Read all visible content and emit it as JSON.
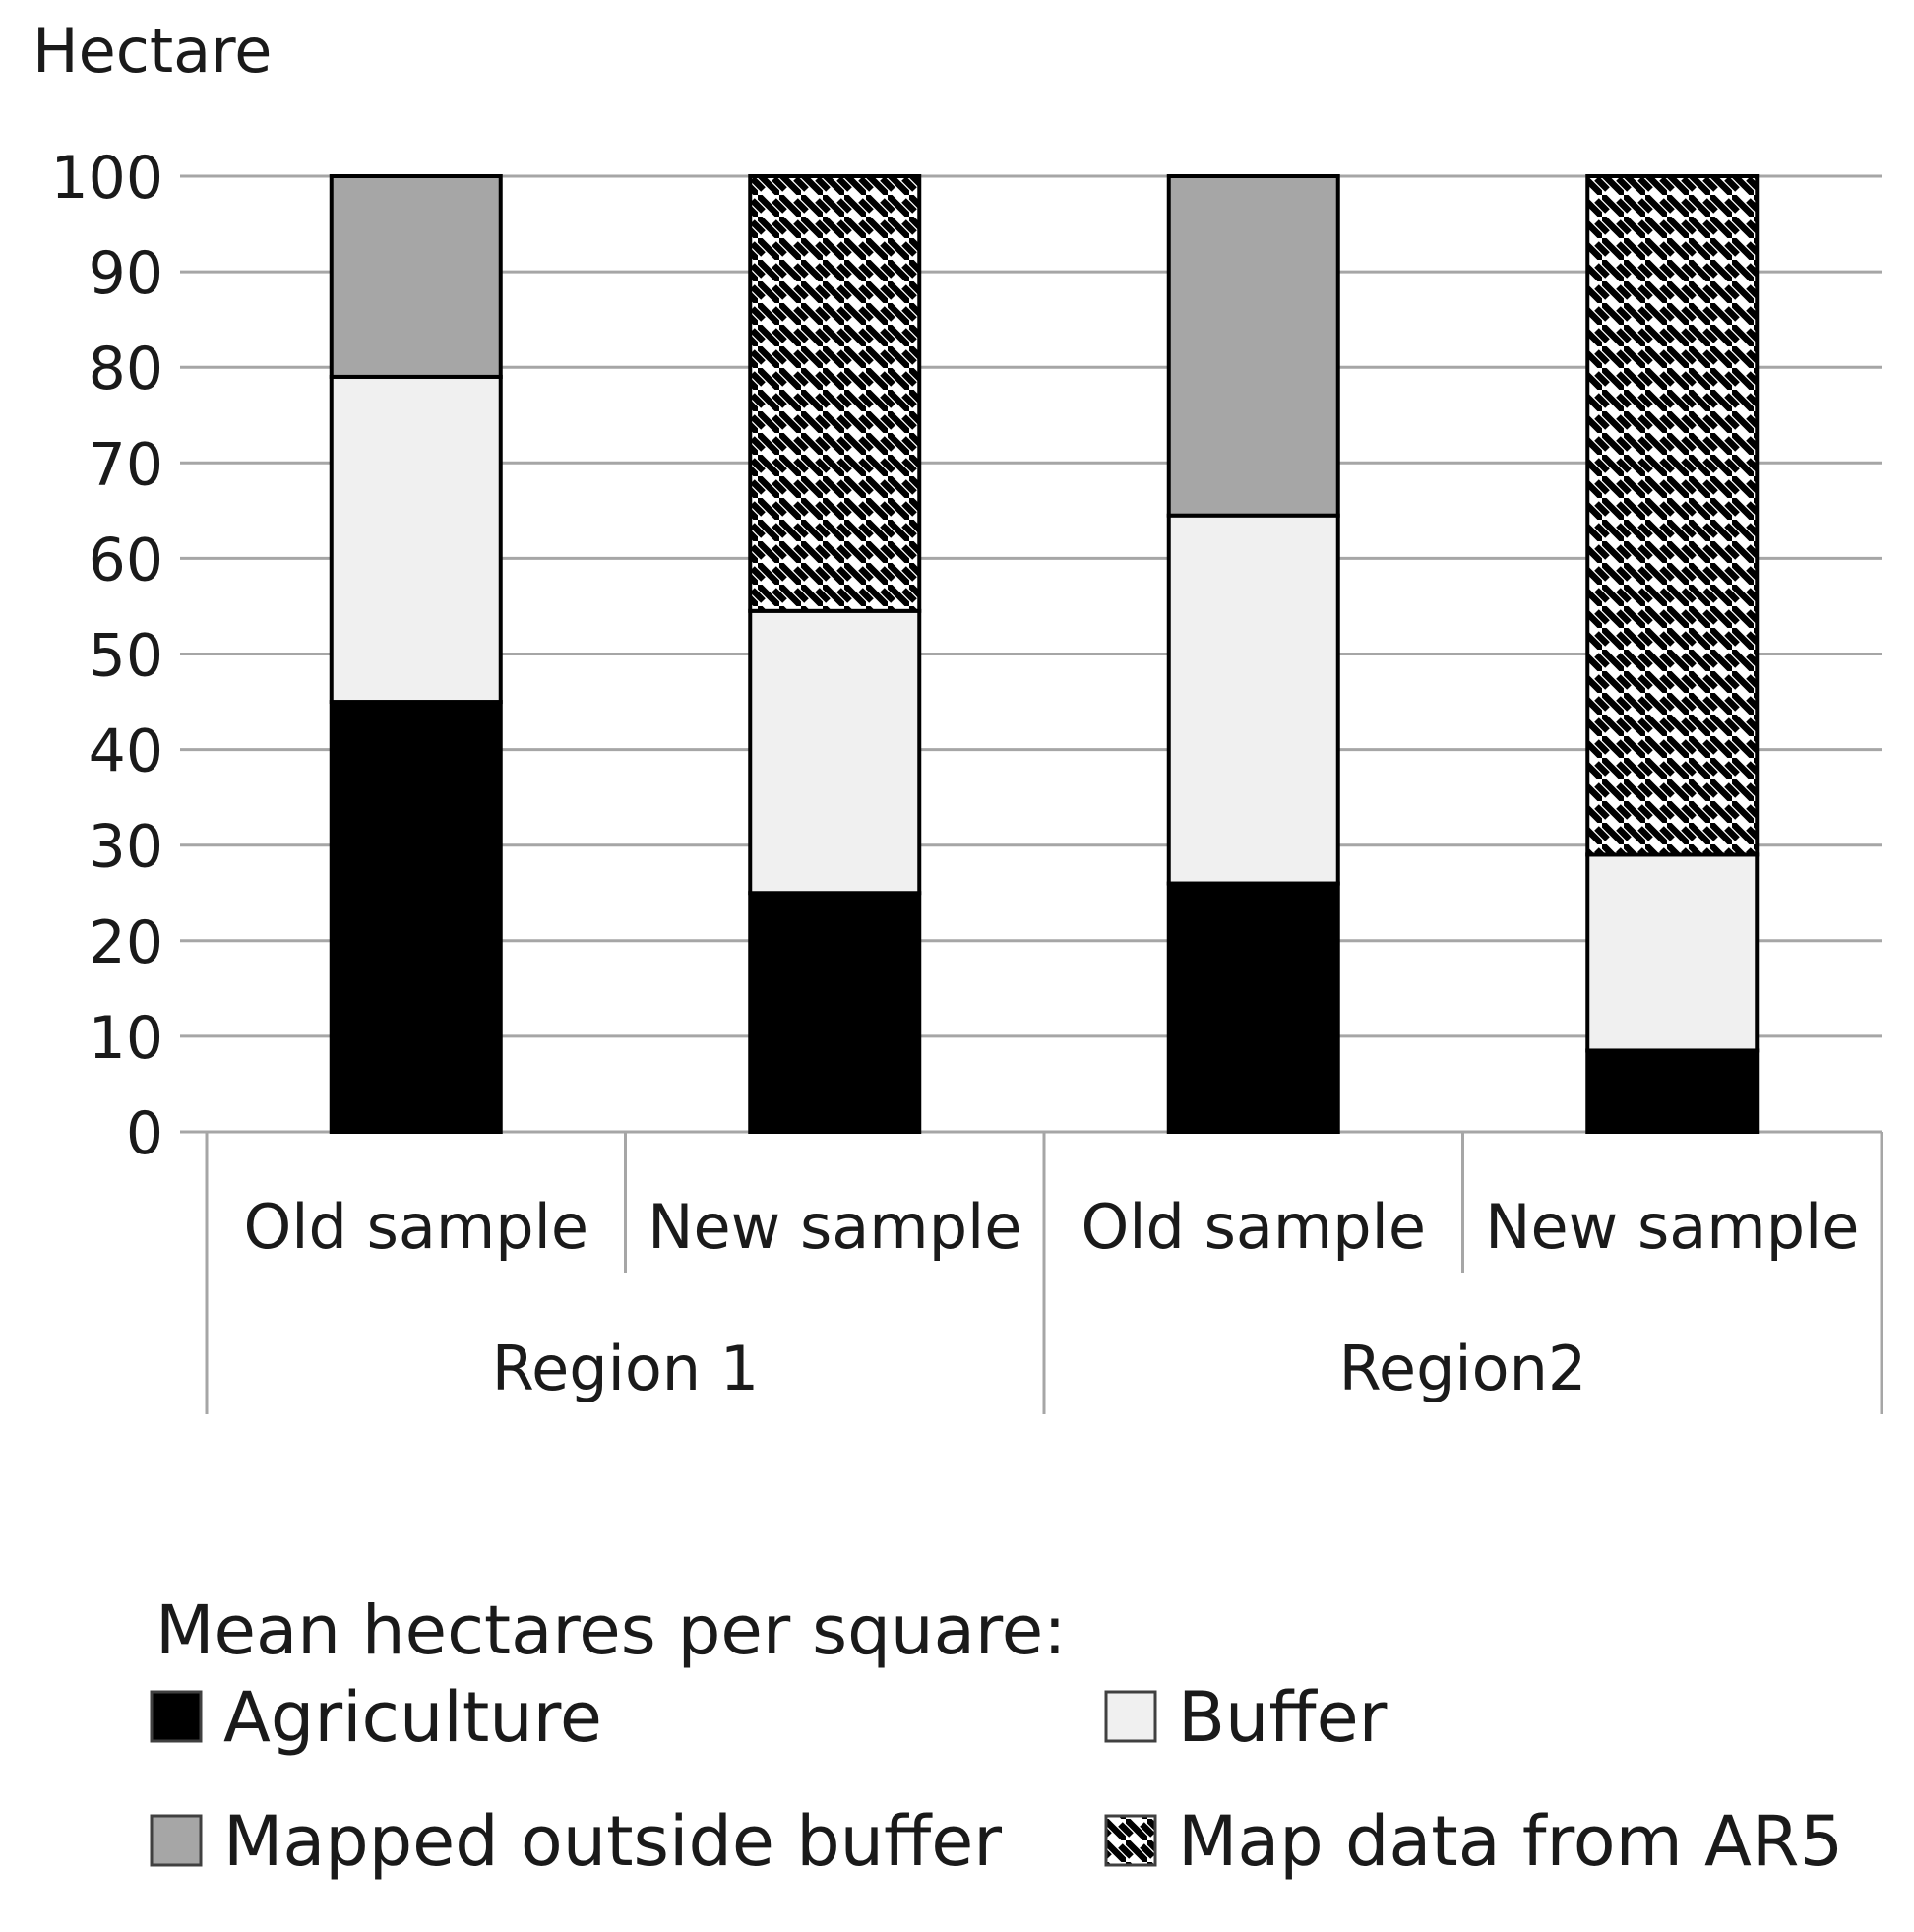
{
  "chart_data": {
    "type": "bar",
    "stacked": true,
    "ylabel": "Hectare",
    "ylim": [
      0,
      100
    ],
    "yticks": [
      0,
      10,
      20,
      30,
      40,
      50,
      60,
      70,
      80,
      90,
      100
    ],
    "grid": true,
    "categories": [
      "Old sample",
      "New sample",
      "Old sample",
      "New sample"
    ],
    "groups": [
      {
        "label": "Region 1",
        "span": [
          0,
          1
        ]
      },
      {
        "label": "Region2",
        "span": [
          2,
          3
        ]
      }
    ],
    "series": [
      {
        "name": "Agriculture",
        "fill": "#000000",
        "pattern": "solid",
        "values": [
          45,
          25,
          26,
          8.5
        ]
      },
      {
        "name": "Buffer",
        "fill": "#f0f0f0",
        "pattern": "solid",
        "values": [
          34,
          29.5,
          38.5,
          20.5
        ]
      },
      {
        "name": "Mapped outside buffer",
        "fill": "#a6a6a6",
        "pattern": "solid",
        "values": [
          21,
          0,
          35.5,
          0
        ]
      },
      {
        "name": "Map data from AR5",
        "fill": "#ffffff",
        "pattern": "diagonal-hatch",
        "values": [
          0,
          45.5,
          0,
          71
        ]
      }
    ],
    "legend": {
      "title": "Mean hectares per square:",
      "placement": "bottom"
    }
  }
}
